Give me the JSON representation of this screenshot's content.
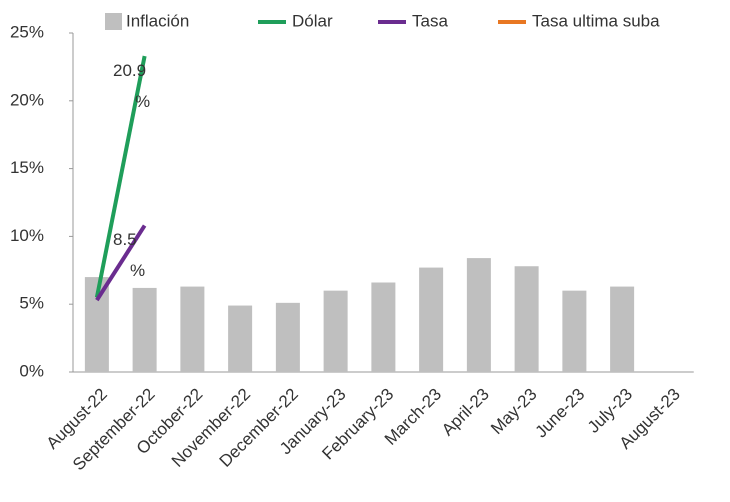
{
  "chart_data": {
    "type": "bar",
    "categories": [
      "August-22",
      "September-22",
      "October-22",
      "November-22",
      "December-22",
      "January-23",
      "February-23",
      "March-23",
      "April-23",
      "May-23",
      "June-23",
      "July-23",
      "August-23"
    ],
    "series": [
      {
        "name": "Inflación",
        "color": "#bfbfbf",
        "type": "bar",
        "values": [
          7.0,
          6.2,
          6.3,
          4.9,
          5.1,
          6.0,
          6.6,
          7.7,
          8.4,
          7.8,
          6.0,
          6.3,
          null
        ]
      },
      {
        "name": "Dólar",
        "color": "#1f9e5a",
        "type": "line",
        "values": [
          5.5,
          23.3,
          null,
          null,
          null,
          null,
          null,
          null,
          null,
          null,
          null,
          null,
          null
        ]
      },
      {
        "name": "Tasa",
        "color": "#6a2c8f",
        "type": "line",
        "values": [
          5.3,
          10.8,
          null,
          null,
          null,
          null,
          null,
          null,
          null,
          null,
          null,
          null,
          null
        ]
      },
      {
        "name": "Tasa ultima suba",
        "color": "#e87722",
        "type": "line",
        "values": [
          null,
          null,
          null,
          null,
          null,
          null,
          null,
          null,
          null,
          null,
          null,
          null,
          null
        ]
      }
    ],
    "annotations": [
      {
        "text": "20.9 %"
      },
      {
        "text": "8.5 %"
      }
    ],
    "ylim": [
      0,
      25
    ],
    "yticks": [
      {
        "value": 0,
        "label": "0%"
      },
      {
        "value": 5,
        "label": "5%"
      },
      {
        "value": 10,
        "label": "10%"
      },
      {
        "value": 15,
        "label": "15%"
      },
      {
        "value": 20,
        "label": "20%"
      },
      {
        "value": 25,
        "label": "25%"
      }
    ]
  }
}
